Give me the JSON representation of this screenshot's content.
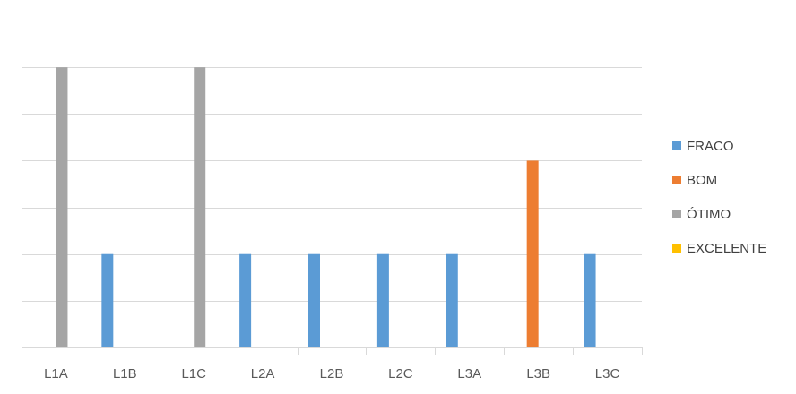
{
  "chart_data": {
    "type": "bar",
    "categories": [
      "L1A",
      "L1B",
      "L1C",
      "L2A",
      "L2B",
      "L2C",
      "L3A",
      "L3B",
      "L3C"
    ],
    "series": [
      {
        "name": "FRACO",
        "color": "#5B9BD5",
        "values": [
          0,
          2,
          0,
          2,
          2,
          2,
          2,
          0,
          2
        ]
      },
      {
        "name": "BOM",
        "color": "#ED7D31",
        "values": [
          0,
          0,
          0,
          0,
          0,
          0,
          0,
          4,
          0
        ]
      },
      {
        "name": "ÓTIMO",
        "color": "#A5A5A5",
        "values": [
          6,
          0,
          6,
          0,
          0,
          0,
          0,
          0,
          0
        ]
      },
      {
        "name": "EXCELENTE",
        "color": "#FFC000",
        "values": [
          0,
          0,
          0,
          0,
          0,
          0,
          0,
          0,
          0
        ]
      }
    ],
    "ylim": [
      0,
      7
    ],
    "grid": true,
    "legend_position": "right"
  }
}
